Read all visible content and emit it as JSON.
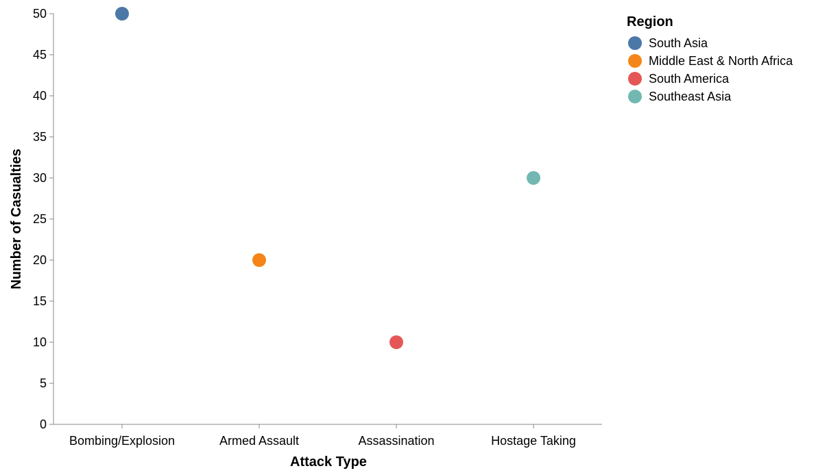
{
  "chart_data": {
    "type": "scatter",
    "xlabel": "Attack Type",
    "ylabel": "Number of Casualties",
    "categories": [
      "Bombing/Explosion",
      "Armed Assault",
      "Assassination",
      "Hostage Taking"
    ],
    "ylim": [
      0,
      50
    ],
    "yticks": [
      0,
      5,
      10,
      15,
      20,
      25,
      30,
      35,
      40,
      45,
      50
    ],
    "grid": false,
    "legend": {
      "title": "Region",
      "position": "top-right"
    },
    "series": [
      {
        "name": "South Asia",
        "color": "#4c78a8",
        "points": [
          {
            "x": "Bombing/Explosion",
            "y": 50
          }
        ]
      },
      {
        "name": "Middle East & North Africa",
        "color": "#f58518",
        "points": [
          {
            "x": "Armed Assault",
            "y": 20
          }
        ]
      },
      {
        "name": "South America",
        "color": "#e45756",
        "points": [
          {
            "x": "Assassination",
            "y": 10
          }
        ]
      },
      {
        "name": "Southeast Asia",
        "color": "#72b7b2",
        "points": [
          {
            "x": "Hostage Taking",
            "y": 30
          }
        ]
      }
    ]
  }
}
